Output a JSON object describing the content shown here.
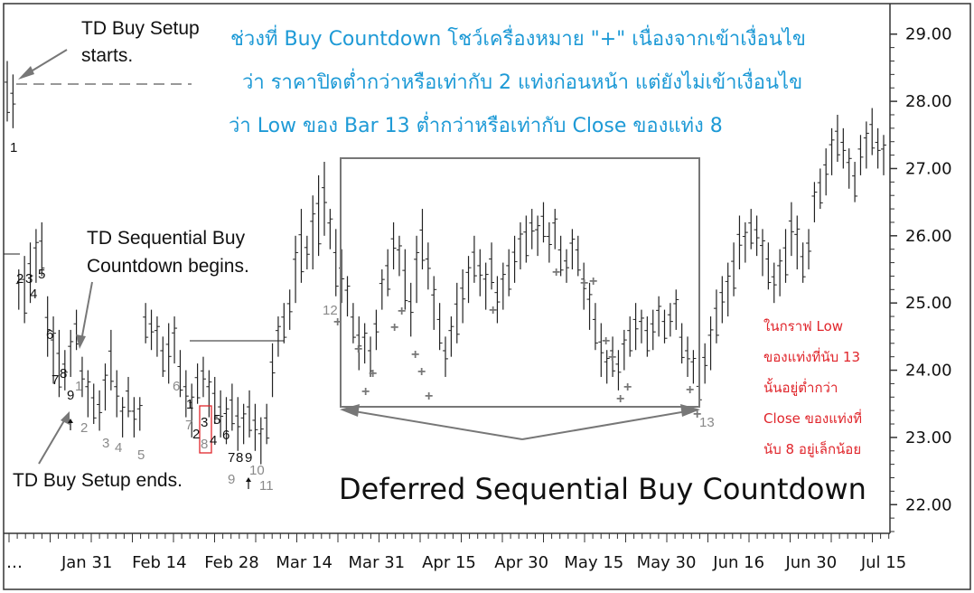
{
  "chart_data": {
    "type": "ohlc",
    "yticks": [
      "29.00",
      "28.00",
      "27.00",
      "26.00",
      "25.00",
      "24.00",
      "23.00",
      "22.00"
    ],
    "ytick_values": [
      29,
      28,
      27,
      26,
      25,
      24,
      23,
      22
    ],
    "ylim": [
      21.6,
      29.4
    ],
    "xticks": [
      "…",
      "Jan 31",
      "Feb 14",
      "Feb 28",
      "Mar 14",
      "Mar 31",
      "Apr 15",
      "Apr 30",
      "May 15",
      "May 30",
      "Jun 16",
      "Jun 30",
      "Jul 15"
    ],
    "bars": [
      [
        28.6,
        27.7
      ],
      [
        28.4,
        27.6
      ],
      [
        25.5,
        24.9
      ],
      [
        25.7,
        24.7
      ],
      [
        25.9,
        25.0
      ],
      [
        26.1,
        25.3
      ],
      [
        26.2,
        25.4
      ],
      [
        25.1,
        24.2
      ],
      [
        24.8,
        23.8
      ],
      [
        24.6,
        23.6
      ],
      [
        24.3,
        23.7
      ],
      [
        24.6,
        23.9
      ],
      [
        24.9,
        24.3
      ],
      [
        24.2,
        23.6
      ],
      [
        24.0,
        23.3
      ],
      [
        23.8,
        23.2
      ],
      [
        23.7,
        23.1
      ],
      [
        24.1,
        23.4
      ],
      [
        24.6,
        23.7
      ],
      [
        24.0,
        23.3
      ],
      [
        23.6,
        23.0
      ],
      [
        23.9,
        23.3
      ],
      [
        23.6,
        23.0
      ],
      [
        23.6,
        23.1
      ],
      [
        25.0,
        24.4
      ],
      [
        24.9,
        24.3
      ],
      [
        24.8,
        24.2
      ],
      [
        24.5,
        23.9
      ],
      [
        24.7,
        23.8
      ],
      [
        24.8,
        24.1
      ],
      [
        24.3,
        23.6
      ],
      [
        24.0,
        23.3
      ],
      [
        23.8,
        23.0
      ],
      [
        24.1,
        23.5
      ],
      [
        24.2,
        23.6
      ],
      [
        24.0,
        23.3
      ],
      [
        23.9,
        23.2
      ],
      [
        23.7,
        23.0
      ],
      [
        23.6,
        22.9
      ],
      [
        23.8,
        23.1
      ],
      [
        23.6,
        22.8
      ],
      [
        23.5,
        22.9
      ],
      [
        23.7,
        23.0
      ],
      [
        23.5,
        22.8
      ],
      [
        23.3,
        22.6
      ],
      [
        23.5,
        22.9
      ],
      [
        24.4,
        23.6
      ],
      [
        24.8,
        24.2
      ],
      [
        25.0,
        24.4
      ],
      [
        25.2,
        24.6
      ],
      [
        26.0,
        25.0
      ],
      [
        26.4,
        25.3
      ],
      [
        26.0,
        25.5
      ],
      [
        26.6,
        25.5
      ],
      [
        26.9,
        25.7
      ],
      [
        27.1,
        26.0
      ],
      [
        26.4,
        25.8
      ],
      [
        26.1,
        25.1
      ],
      [
        25.8,
        25.0
      ],
      [
        25.4,
        24.8
      ],
      [
        25.0,
        24.4
      ],
      [
        24.8,
        24.0
      ],
      [
        24.7,
        24.1
      ],
      [
        24.5,
        23.9
      ],
      [
        24.9,
        24.3
      ],
      [
        25.5,
        24.9
      ],
      [
        25.8,
        25.1
      ],
      [
        26.2,
        25.5
      ],
      [
        26.0,
        25.4
      ],
      [
        25.8,
        24.9
      ],
      [
        25.3,
        24.5
      ],
      [
        26.0,
        25.0
      ],
      [
        26.4,
        25.5
      ],
      [
        25.9,
        25.2
      ],
      [
        25.4,
        24.6
      ],
      [
        25.0,
        24.3
      ],
      [
        24.5,
        23.9
      ],
      [
        24.8,
        24.2
      ],
      [
        25.3,
        24.4
      ],
      [
        25.5,
        24.7
      ],
      [
        25.7,
        25.0
      ],
      [
        26.0,
        25.3
      ],
      [
        25.8,
        25.1
      ],
      [
        25.6,
        24.9
      ],
      [
        25.9,
        25.2
      ],
      [
        25.4,
        24.7
      ],
      [
        25.6,
        24.9
      ],
      [
        25.8,
        25.1
      ],
      [
        26.0,
        25.3
      ],
      [
        26.2,
        25.5
      ],
      [
        26.3,
        25.6
      ],
      [
        26.4,
        25.8
      ],
      [
        26.3,
        25.7
      ],
      [
        26.5,
        25.9
      ],
      [
        26.2,
        25.6
      ],
      [
        26.4,
        25.8
      ],
      [
        26.0,
        25.4
      ],
      [
        25.8,
        25.3
      ],
      [
        26.1,
        25.5
      ],
      [
        26.0,
        25.4
      ],
      [
        25.6,
        24.9
      ],
      [
        25.3,
        24.6
      ],
      [
        25.0,
        24.3
      ],
      [
        24.7,
        23.9
      ],
      [
        24.3,
        23.8
      ],
      [
        24.5,
        23.9
      ],
      [
        24.3,
        23.7
      ],
      [
        24.6,
        24.0
      ],
      [
        24.8,
        24.2
      ],
      [
        25.0,
        24.3
      ],
      [
        24.9,
        24.4
      ],
      [
        24.8,
        24.2
      ],
      [
        24.9,
        24.3
      ],
      [
        25.1,
        24.5
      ],
      [
        24.9,
        24.4
      ],
      [
        25.0,
        24.5
      ],
      [
        25.2,
        24.6
      ],
      [
        24.7,
        24.1
      ],
      [
        24.5,
        23.9
      ],
      [
        24.3,
        23.8
      ],
      [
        23.9,
        23.5
      ],
      [
        24.4,
        23.8
      ],
      [
        24.8,
        24.0
      ],
      [
        25.2,
        24.4
      ],
      [
        25.4,
        24.7
      ],
      [
        25.6,
        24.8
      ],
      [
        25.9,
        25.1
      ],
      [
        26.3,
        25.5
      ],
      [
        26.2,
        25.6
      ],
      [
        26.4,
        25.8
      ],
      [
        26.3,
        25.7
      ],
      [
        26.1,
        25.4
      ],
      [
        25.9,
        25.2
      ],
      [
        25.6,
        25.0
      ],
      [
        25.8,
        25.1
      ],
      [
        26.1,
        25.3
      ],
      [
        26.5,
        25.7
      ],
      [
        26.3,
        25.5
      ],
      [
        25.9,
        25.3
      ],
      [
        26.1,
        25.5
      ],
      [
        26.8,
        26.2
      ],
      [
        27.0,
        26.4
      ],
      [
        27.3,
        26.6
      ],
      [
        27.6,
        26.9
      ],
      [
        27.8,
        27.1
      ],
      [
        27.6,
        27.0
      ],
      [
        27.3,
        26.7
      ],
      [
        27.1,
        26.5
      ],
      [
        27.5,
        26.9
      ],
      [
        27.7,
        27.0
      ],
      [
        27.9,
        27.2
      ],
      [
        27.6,
        27.0
      ],
      [
        27.5,
        26.9
      ]
    ]
  },
  "thai_note": {
    "line1": "ช่วงที่ Buy Countdown โชว์เครื่องหมาย \"+\" เนื่องจากเข้าเงื่อนไข",
    "line2": "ว่า ราคาปิดต่ำกว่าหรือเท่ากับ 2 แท่งก่อนหน้า แต่ยังไม่เข้าเงื่อนไข",
    "line3": "ว่า Low ของ Bar 13 ต่ำกว่าหรือเท่ากับ Close ของแท่ง 8"
  },
  "red_note": {
    "line1": "ในกราฟ Low",
    "line2": "ของแท่งที่นับ 13",
    "line3": "นั้นอยู่ต่ำกว่า",
    "line4": "Close ของแท่งที่",
    "line5": "นับ 8 อยู่เล็กน้อย"
  },
  "annotations": {
    "setup_starts_1": "TD Buy Setup",
    "setup_starts_2": "starts.",
    "countdown_begins_1": "TD Sequential Buy",
    "countdown_begins_2": "Countdown begins.",
    "setup_ends": "TD Buy Setup ends.",
    "deferred": "Deferred Sequential Buy Countdown"
  },
  "counts": {
    "c_1_top": "1",
    "c_2": "2",
    "c_3": "3",
    "c_4": "4",
    "c_5": "5",
    "c_6": "6",
    "c_7": "7",
    "c_8": "8",
    "c_9": "9",
    "g_1": "1",
    "g_2": "2",
    "g_3": "3",
    "g_4": "4",
    "g_5": "5",
    "g_6": "6",
    "d_1": "1",
    "g_7": "7",
    "d_2": "2",
    "d_3": "3",
    "g_8": "8",
    "d_4": "4",
    "d_5": "5",
    "d_6": "6",
    "d_7": "7",
    "d_8": "8",
    "d_9": "9",
    "g_9": "9",
    "g_10": "10",
    "g_11": "11",
    "g_12": "12",
    "g_13": "13"
  },
  "plus_symbol": "+",
  "colors": {
    "bars": "#222222",
    "box": "#777777",
    "blue_text": "#1e9ad6",
    "red_text": "#e0252b",
    "red_box": "#e0252b",
    "gray_count": "#8a8a8a"
  }
}
